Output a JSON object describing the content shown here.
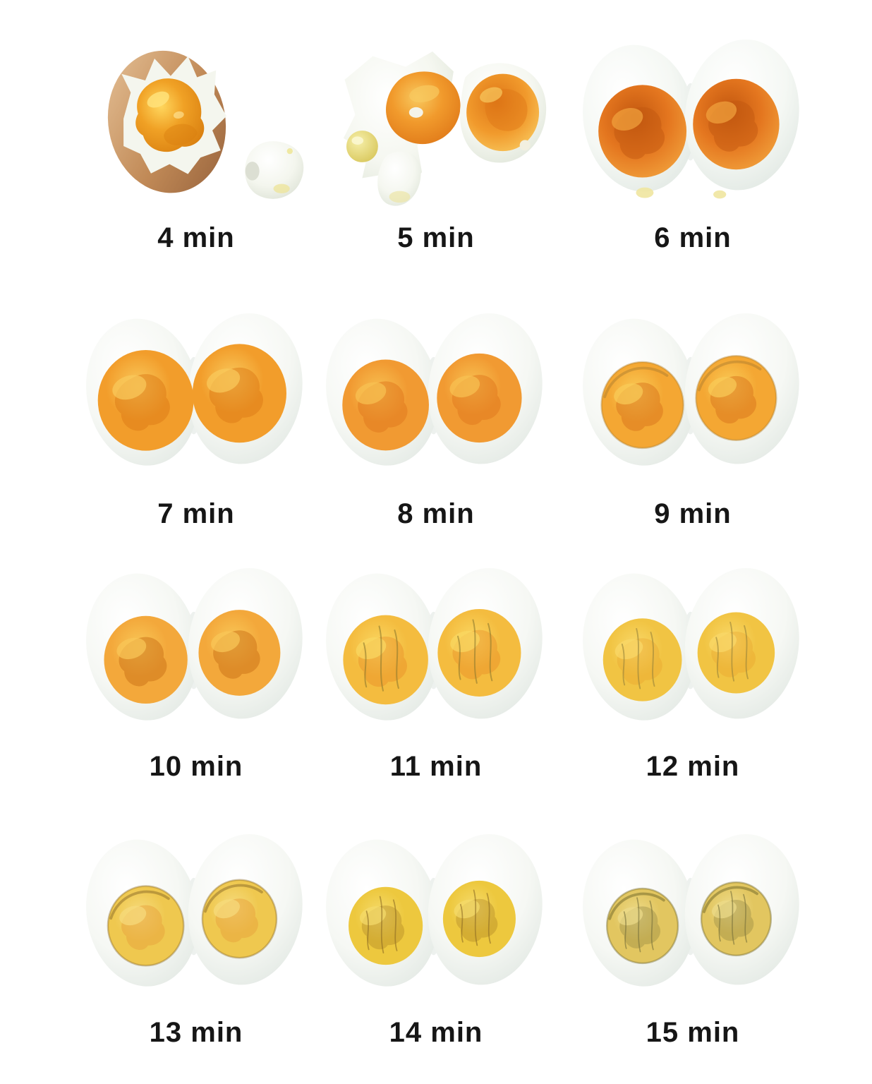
{
  "page": {
    "background": "#FFFFFF",
    "label_color": "#161616"
  },
  "grid": {
    "columns": 3,
    "rows": 4,
    "items": [
      {
        "label": "4 min",
        "photo": "cracked-brown-shell-egg-with-runny-yolk-and-white-piece",
        "variant": "cracked-shell",
        "colors": {
          "shell_light": "#E5C197",
          "shell": "#C18A57",
          "shell_dark": "#95613B",
          "white": "#F4F6EE",
          "white_edge": "#DFE4D8",
          "yolk": "#F0A125",
          "yolk_dark": "#D97F10",
          "yolk_light": "#FFD75E"
        }
      },
      {
        "label": "5 min",
        "photo": "collapsed-soft-egg-halves-spilling-runny-orange-yolk",
        "variant": "spilled",
        "colors": {
          "white": "#F5F7F0",
          "white_edge": "#E1E7DB",
          "yolk": "#F19A2C",
          "yolk_dark": "#DE7617",
          "yolk_light": "#F8C95F",
          "ball": "#EFE28C",
          "ball_dark": "#D8C75C"
        }
      },
      {
        "label": "6 min",
        "photo": "soft-boiled-halves-dark-orange-jammy-yolk",
        "variant": "halves",
        "colors": {
          "white": "#F5F8F4",
          "white_edge": "#E2E9E4",
          "yolk": "#E4761F",
          "yolk_dark": "#C2570F",
          "yolk_light": "#F2A43E",
          "drip": "#EFE6A0"
        },
        "art": {
          "yolk_scale": 1.14,
          "invert": true
        }
      },
      {
        "label": "7 min",
        "photo": "halves-with-large-spread-golden-jammy-yolk",
        "variant": "halves",
        "colors": {
          "white": "#F6F8F4",
          "white_edge": "#E4EAE5",
          "yolk": "#F29D2B",
          "yolk_dark": "#DB7A15",
          "yolk_light": "#F9CA5D"
        },
        "art": {
          "yolk_scale": 1.24
        }
      },
      {
        "label": "8 min",
        "photo": "halves-with-round-orange-jammy-yolk",
        "variant": "halves",
        "colors": {
          "white": "#F6F8F4",
          "white_edge": "#E4EAE5",
          "yolk": "#F19A32",
          "yolk_dark": "#E0751C",
          "yolk_light": "#F8C253"
        },
        "art": {
          "yolk_scale": 1.12
        }
      },
      {
        "label": "9 min",
        "photo": "halves-with-golden-yolk-soft-orange-center",
        "variant": "halves",
        "colors": {
          "white": "#F6F8F4",
          "white_edge": "#E4EAE5",
          "yolk": "#F4A733",
          "yolk_dark": "#D8731B",
          "yolk_light": "#FACC58",
          "ring": "#B08030"
        },
        "art": {
          "yolk_scale": 1.06
        }
      },
      {
        "label": "10 min",
        "photo": "halves-with-set-yellow-orange-yolk-dark-streaks",
        "variant": "halves",
        "colors": {
          "white": "#F6F8F4",
          "white_edge": "#E4EAE5",
          "yolk": "#F3A83B",
          "yolk_dark": "#C96F16",
          "yolk_light": "#F9C858"
        },
        "art": {
          "yolk_scale": 1.08
        }
      },
      {
        "label": "11 min",
        "photo": "halves-with-yellow-yolk-small-orange-center-fine-cracks",
        "variant": "halves",
        "colors": {
          "white": "#F6F8F4",
          "white_edge": "#E4EAE5",
          "yolk": "#F4BC3F",
          "yolk_dark": "#E5821F",
          "yolk_light": "#FAD863",
          "cracks": "#8F7B2E"
        },
        "art": {
          "yolk_scale": 1.1,
          "cracks": true
        }
      },
      {
        "label": "12 min",
        "photo": "halves-with-fully-set-yellow-yolk-faint-orange-tint",
        "variant": "halves",
        "colors": {
          "white": "#F6F8F4",
          "white_edge": "#E4EAE5",
          "yolk": "#F1C443",
          "yolk_dark": "#E8A02C",
          "yolk_light": "#F9D96A",
          "cracks": "#97833A"
        },
        "art": {
          "yolk_scale": 1.02,
          "cracks": true
        }
      },
      {
        "label": "13 min",
        "photo": "halves-with-pale-yellow-yolk-light-orange-center-brown-rim",
        "variant": "halves",
        "colors": {
          "white": "#F6F8F4",
          "white_edge": "#E4EAE5",
          "yolk": "#EFC84F",
          "yolk_dark": "#E8A23C",
          "yolk_light": "#F6DB7E",
          "ring": "#8A6A28"
        },
        "art": {
          "yolk_scale": 0.98
        }
      },
      {
        "label": "14 min",
        "photo": "halves-with-dry-yellow-yolk-brown-crack-streaks",
        "variant": "halves",
        "colors": {
          "white": "#F6F8F4",
          "white_edge": "#E4EAE5",
          "yolk": "#EDC83E",
          "yolk_dark": "#A67A20",
          "yolk_light": "#F5DB6C",
          "cracks": "#8D6D25"
        },
        "art": {
          "yolk_scale": 0.96,
          "cracks": true
        }
      },
      {
        "label": "15 min",
        "photo": "halves-with-chalky-pale-yolk-greenish-ring-and-cracks",
        "variant": "halves",
        "colors": {
          "white": "#F6F8F4",
          "white_edge": "#E4EAE5",
          "yolk": "#E2C660",
          "yolk_dark": "#8A7D3B",
          "yolk_light": "#EDDB8A",
          "cracks": "#76703A",
          "ring": "#6E6527"
        },
        "art": {
          "yolk_scale": 0.92,
          "cracks": true
        }
      }
    ]
  }
}
